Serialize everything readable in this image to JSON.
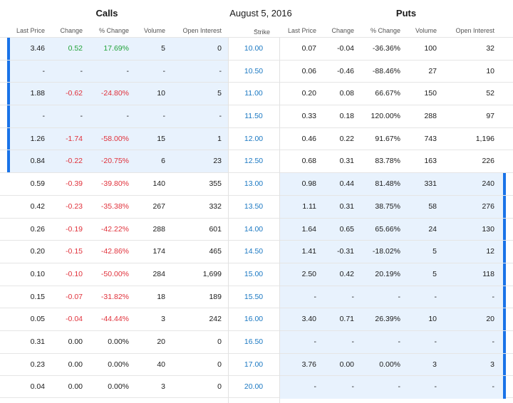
{
  "header": {
    "calls_title": "Calls",
    "expiration_date": "August 5, 2016",
    "puts_title": "Puts"
  },
  "columns": {
    "calls": {
      "last_price": "Last Price",
      "change": "Change",
      "pct_change": "% Change",
      "volume": "Volume",
      "open_interest": "Open Interest"
    },
    "strike": "Strike",
    "strike_sort_icon": "caret-up-icon",
    "puts": {
      "last_price": "Last Price",
      "change": "Change",
      "pct_change": "% Change",
      "volume": "Volume",
      "open_interest": "Open Interest"
    }
  },
  "colors": {
    "itm_background": "#e8f2fd",
    "itm_bar": "#1a73e8",
    "positive": "#21a33a",
    "negative": "#e0303a",
    "strike_link": "#1a78c2"
  },
  "rows": [
    {
      "strike": "10.00",
      "calls_itm": true,
      "puts_itm": false,
      "calls": {
        "last": "3.46",
        "change": "0.52",
        "pct": "17.69%",
        "volume": "5",
        "oi": "0",
        "dir": "pos"
      },
      "puts": {
        "last": "0.07",
        "change": "-0.04",
        "pct": "-36.36%",
        "volume": "100",
        "oi": "32",
        "dir": "none"
      }
    },
    {
      "strike": "10.50",
      "calls_itm": true,
      "puts_itm": false,
      "calls": {
        "last": "-",
        "change": "-",
        "pct": "-",
        "volume": "-",
        "oi": "-",
        "dir": "none"
      },
      "puts": {
        "last": "0.06",
        "change": "-0.46",
        "pct": "-88.46%",
        "volume": "27",
        "oi": "10",
        "dir": "none"
      }
    },
    {
      "strike": "11.00",
      "calls_itm": true,
      "puts_itm": false,
      "calls": {
        "last": "1.88",
        "change": "-0.62",
        "pct": "-24.80%",
        "volume": "10",
        "oi": "5",
        "dir": "neg"
      },
      "puts": {
        "last": "0.20",
        "change": "0.08",
        "pct": "66.67%",
        "volume": "150",
        "oi": "52",
        "dir": "none"
      }
    },
    {
      "strike": "11.50",
      "calls_itm": true,
      "puts_itm": false,
      "calls": {
        "last": "-",
        "change": "-",
        "pct": "-",
        "volume": "-",
        "oi": "-",
        "dir": "none"
      },
      "puts": {
        "last": "0.33",
        "change": "0.18",
        "pct": "120.00%",
        "volume": "288",
        "oi": "97",
        "dir": "none"
      }
    },
    {
      "strike": "12.00",
      "calls_itm": true,
      "puts_itm": false,
      "calls": {
        "last": "1.26",
        "change": "-1.74",
        "pct": "-58.00%",
        "volume": "15",
        "oi": "1",
        "dir": "neg"
      },
      "puts": {
        "last": "0.46",
        "change": "0.22",
        "pct": "91.67%",
        "volume": "743",
        "oi": "1,196",
        "dir": "none"
      }
    },
    {
      "strike": "12.50",
      "calls_itm": true,
      "puts_itm": false,
      "calls": {
        "last": "0.84",
        "change": "-0.22",
        "pct": "-20.75%",
        "volume": "6",
        "oi": "23",
        "dir": "neg"
      },
      "puts": {
        "last": "0.68",
        "change": "0.31",
        "pct": "83.78%",
        "volume": "163",
        "oi": "226",
        "dir": "none"
      }
    },
    {
      "strike": "13.00",
      "calls_itm": false,
      "puts_itm": true,
      "calls": {
        "last": "0.59",
        "change": "-0.39",
        "pct": "-39.80%",
        "volume": "140",
        "oi": "355",
        "dir": "neg"
      },
      "puts": {
        "last": "0.98",
        "change": "0.44",
        "pct": "81.48%",
        "volume": "331",
        "oi": "240",
        "dir": "none"
      }
    },
    {
      "strike": "13.50",
      "calls_itm": false,
      "puts_itm": true,
      "calls": {
        "last": "0.42",
        "change": "-0.23",
        "pct": "-35.38%",
        "volume": "267",
        "oi": "332",
        "dir": "neg"
      },
      "puts": {
        "last": "1.11",
        "change": "0.31",
        "pct": "38.75%",
        "volume": "58",
        "oi": "276",
        "dir": "none"
      }
    },
    {
      "strike": "14.00",
      "calls_itm": false,
      "puts_itm": true,
      "calls": {
        "last": "0.26",
        "change": "-0.19",
        "pct": "-42.22%",
        "volume": "288",
        "oi": "601",
        "dir": "neg"
      },
      "puts": {
        "last": "1.64",
        "change": "0.65",
        "pct": "65.66%",
        "volume": "24",
        "oi": "130",
        "dir": "none"
      }
    },
    {
      "strike": "14.50",
      "calls_itm": false,
      "puts_itm": true,
      "calls": {
        "last": "0.20",
        "change": "-0.15",
        "pct": "-42.86%",
        "volume": "174",
        "oi": "465",
        "dir": "neg"
      },
      "puts": {
        "last": "1.41",
        "change": "-0.31",
        "pct": "-18.02%",
        "volume": "5",
        "oi": "12",
        "dir": "none"
      }
    },
    {
      "strike": "15.00",
      "calls_itm": false,
      "puts_itm": true,
      "calls": {
        "last": "0.10",
        "change": "-0.10",
        "pct": "-50.00%",
        "volume": "284",
        "oi": "1,699",
        "dir": "neg"
      },
      "puts": {
        "last": "2.50",
        "change": "0.42",
        "pct": "20.19%",
        "volume": "5",
        "oi": "118",
        "dir": "none"
      }
    },
    {
      "strike": "15.50",
      "calls_itm": false,
      "puts_itm": true,
      "calls": {
        "last": "0.15",
        "change": "-0.07",
        "pct": "-31.82%",
        "volume": "18",
        "oi": "189",
        "dir": "neg"
      },
      "puts": {
        "last": "-",
        "change": "-",
        "pct": "-",
        "volume": "-",
        "oi": "-",
        "dir": "none"
      }
    },
    {
      "strike": "16.00",
      "calls_itm": false,
      "puts_itm": true,
      "calls": {
        "last": "0.05",
        "change": "-0.04",
        "pct": "-44.44%",
        "volume": "3",
        "oi": "242",
        "dir": "neg"
      },
      "puts": {
        "last": "3.40",
        "change": "0.71",
        "pct": "26.39%",
        "volume": "10",
        "oi": "20",
        "dir": "none"
      }
    },
    {
      "strike": "16.50",
      "calls_itm": false,
      "puts_itm": true,
      "calls": {
        "last": "0.31",
        "change": "0.00",
        "pct": "0.00%",
        "volume": "20",
        "oi": "0",
        "dir": "none"
      },
      "puts": {
        "last": "-",
        "change": "-",
        "pct": "-",
        "volume": "-",
        "oi": "-",
        "dir": "none"
      }
    },
    {
      "strike": "17.00",
      "calls_itm": false,
      "puts_itm": true,
      "calls": {
        "last": "0.23",
        "change": "0.00",
        "pct": "0.00%",
        "volume": "40",
        "oi": "0",
        "dir": "none"
      },
      "puts": {
        "last": "3.76",
        "change": "0.00",
        "pct": "0.00%",
        "volume": "3",
        "oi": "3",
        "dir": "none"
      }
    },
    {
      "strike": "20.00",
      "calls_itm": false,
      "puts_itm": true,
      "calls": {
        "last": "0.04",
        "change": "0.00",
        "pct": "0.00%",
        "volume": "3",
        "oi": "0",
        "dir": "none"
      },
      "puts": {
        "last": "-",
        "change": "-",
        "pct": "-",
        "volume": "-",
        "oi": "-",
        "dir": "none"
      }
    }
  ]
}
